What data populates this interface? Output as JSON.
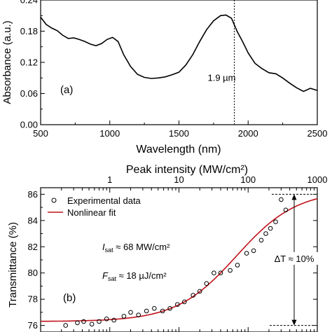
{
  "chart_data": [
    {
      "type": "line",
      "panel_label": "(a)",
      "xlabel": "Wavelength (nm)",
      "ylabel": "Absorbance (a.u.)",
      "xlim": [
        500,
        2500
      ],
      "ylim": [
        0.0,
        0.24
      ],
      "x_ticks": [
        500,
        1000,
        1500,
        2000,
        2500
      ],
      "y_ticks": [
        0.0,
        0.06,
        0.12,
        0.18,
        0.24
      ],
      "x_tick_labels": [
        "500",
        "1000",
        "1500",
        "2000",
        "2500"
      ],
      "y_tick_labels": [
        "0.00",
        "0.06",
        "0.12",
        "0.18",
        "0.24"
      ],
      "grid": false,
      "annotation": {
        "text": "1.9 µm",
        "x": 1900
      },
      "series": [
        {
          "color": "#000000",
          "x": [
            500,
            540,
            580,
            620,
            660,
            700,
            740,
            780,
            820,
            860,
            900,
            940,
            980,
            1020,
            1060,
            1100,
            1150,
            1200,
            1250,
            1300,
            1350,
            1400,
            1450,
            1500,
            1550,
            1600,
            1650,
            1700,
            1750,
            1800,
            1840,
            1880,
            1920,
            1960,
            2000,
            2050,
            2100,
            2150,
            2200,
            2250,
            2300,
            2350,
            2400,
            2450,
            2500
          ],
          "y": [
            0.207,
            0.193,
            0.186,
            0.181,
            0.172,
            0.166,
            0.167,
            0.164,
            0.16,
            0.155,
            0.152,
            0.156,
            0.164,
            0.168,
            0.16,
            0.135,
            0.112,
            0.097,
            0.091,
            0.089,
            0.09,
            0.092,
            0.096,
            0.101,
            0.115,
            0.135,
            0.16,
            0.183,
            0.2,
            0.21,
            0.211,
            0.205,
            0.18,
            0.16,
            0.138,
            0.118,
            0.108,
            0.1,
            0.098,
            0.09,
            0.08,
            0.071,
            0.064,
            0.07,
            0.066
          ]
        }
      ]
    },
    {
      "type": "scatter",
      "panel_label": "(b)",
      "xlabel": "Peak intensity (MW/cm²)",
      "ylabel": "Transmittance (%)",
      "xscale": "log",
      "xlim": [
        0.1,
        1000
      ],
      "ylim": [
        75.5,
        86.5
      ],
      "x_ticks": [
        1,
        10,
        100,
        1000
      ],
      "x_tick_labels": [
        "1",
        "10",
        "100",
        "1000"
      ],
      "y_ticks": [
        76,
        78,
        80,
        82,
        84,
        86
      ],
      "y_tick_labels": [
        "76",
        "78",
        "80",
        "82",
        "84",
        "86"
      ],
      "grid": false,
      "legend": {
        "position": "top-left",
        "entries": [
          "Experimental data",
          "Nonlinear fit"
        ]
      },
      "annotations": {
        "isat": {
          "var": "I",
          "sub": "sat",
          "text": " ≈ 68 MW/cm²"
        },
        "fsat": {
          "var": "F",
          "sub": "sat",
          "text": " ≈ 18 µJ/cm²"
        },
        "delta": "ΔT ≈ 10%"
      },
      "delta_levels": [
        86,
        76
      ],
      "series": [
        {
          "name": "Experimental data",
          "marker": "open-circle",
          "x": [
            0.23,
            0.34,
            0.42,
            0.55,
            0.7,
            0.9,
            1.15,
            1.6,
            2.0,
            2.6,
            3.4,
            4.4,
            5.8,
            7.4,
            9.5,
            12,
            16,
            20,
            25,
            32,
            40,
            55,
            70,
            95,
            120,
            155,
            180,
            210,
            250,
            300,
            350
          ],
          "y": [
            76.0,
            76.2,
            76.3,
            76.1,
            76.3,
            76.5,
            76.4,
            76.7,
            77.0,
            76.8,
            77.1,
            77.3,
            77.1,
            77.3,
            77.6,
            77.8,
            78.3,
            78.6,
            79.2,
            80.0,
            80.0,
            80.2,
            80.6,
            81.5,
            81.7,
            82.5,
            83.0,
            83.4,
            83.9,
            85.6,
            84.8
          ]
        },
        {
          "name": "Nonlinear fit",
          "color": "#c0131b",
          "model": "saturable",
          "params": {
            "T_min": 76.3,
            "delta": 10.0,
            "I_sat": 68
          }
        }
      ]
    }
  ]
}
